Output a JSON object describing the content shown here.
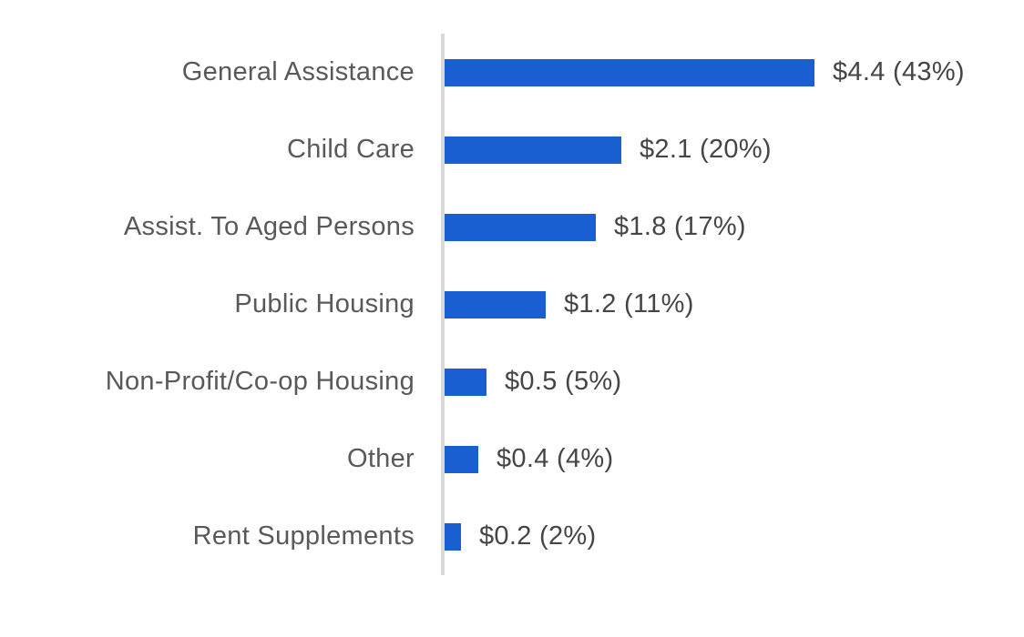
{
  "chart_data": {
    "type": "bar",
    "orientation": "horizontal",
    "title": "",
    "xlabel": "",
    "ylabel": "",
    "xlim": [
      0,
      4.7
    ],
    "grid": false,
    "legend": false,
    "categories": [
      "General Assistance",
      "Child Care",
      "Assist. To Aged Persons",
      "Public Housing",
      "Non-Profit/Co-op Housing",
      "Other",
      "Rent Supplements"
    ],
    "values": [
      4.4,
      2.1,
      1.8,
      1.2,
      0.5,
      0.4,
      0.2
    ],
    "percents": [
      43,
      20,
      17,
      11,
      5,
      4,
      2
    ],
    "value_labels": [
      "$4.4 (43%)",
      "$2.1 (20%)",
      "$1.8 (17%)",
      "$1.2 (11%)",
      "$0.5 (5%)",
      "$0.4 (4%)",
      "$0.2 (2%)"
    ],
    "colors": {
      "bar": "#1a5fd2",
      "axis": "#d9d9d9",
      "category_label": "#595959",
      "value_label": "#454545",
      "background": "#ffffff"
    }
  }
}
